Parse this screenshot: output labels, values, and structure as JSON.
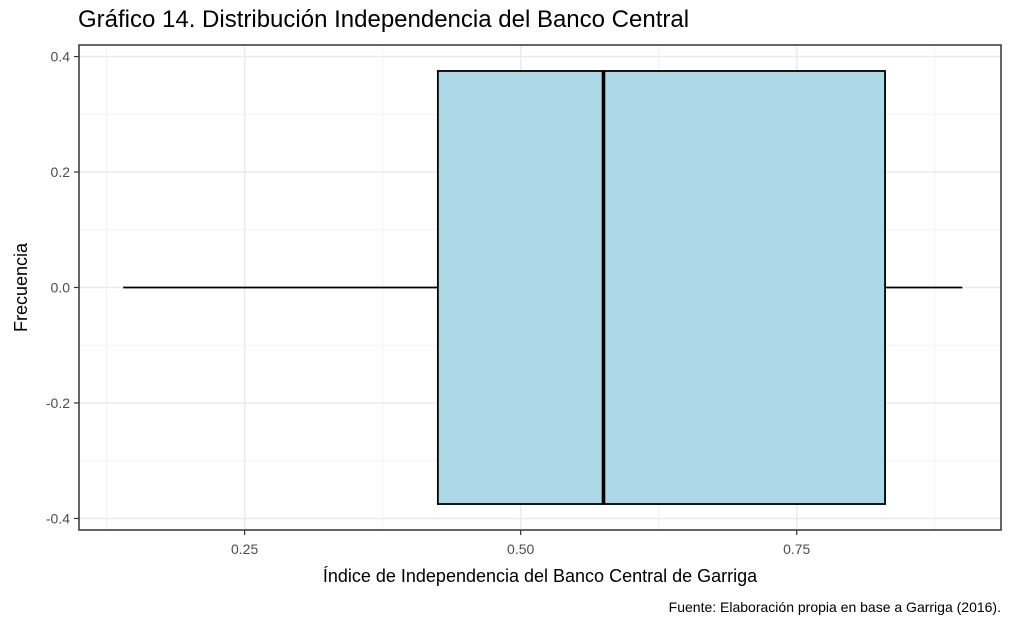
{
  "chart_data": {
    "type": "boxplot",
    "title": "Gráfico 14. Distribución Independencia del Banco Central",
    "xlabel": "Índice de Independencia del Banco Central de Garriga",
    "ylabel": "Frecuencia",
    "caption": "Fuente: Elaboración propia en base a Garriga (2016).",
    "xlim": [
      0.1,
      0.935
    ],
    "ylim": [
      -0.42,
      0.42
    ],
    "x_ticks": [
      {
        "value": 0.25,
        "label": "0.25"
      },
      {
        "value": 0.5,
        "label": "0.50"
      },
      {
        "value": 0.75,
        "label": "0.75"
      }
    ],
    "y_ticks": [
      {
        "value": 0.4,
        "label": "0.4"
      },
      {
        "value": 0.2,
        "label": "0.2"
      },
      {
        "value": 0.0,
        "label": "0.0"
      },
      {
        "value": -0.2,
        "label": "-0.2"
      },
      {
        "value": -0.4,
        "label": "-0.4"
      }
    ],
    "grid": true,
    "box": {
      "min": 0.14,
      "q1": 0.425,
      "median": 0.575,
      "q3": 0.83,
      "max": 0.9,
      "fill": "#add8e6",
      "half_width": 0.375
    }
  }
}
